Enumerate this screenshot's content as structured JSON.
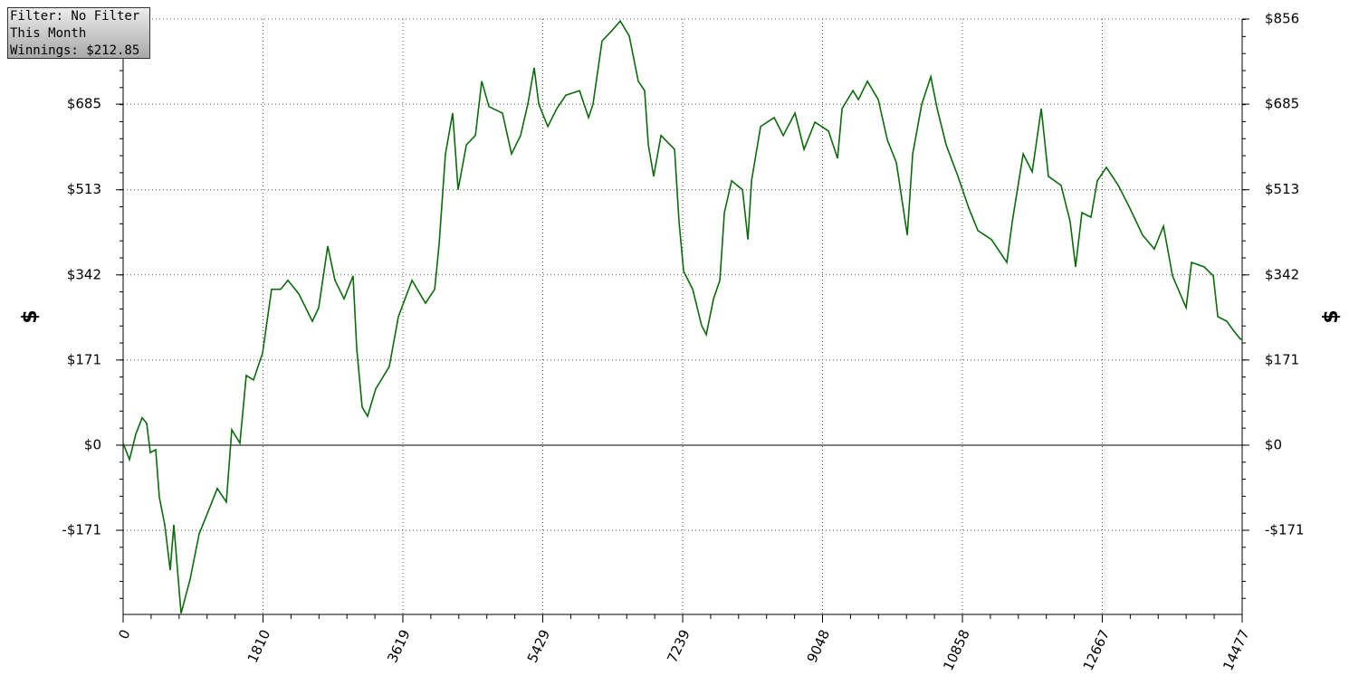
{
  "chart_data": {
    "type": "line",
    "annotations": [
      "Filter: No Filter",
      "This Month",
      "Winnings: $212.85"
    ],
    "ylabel": "$",
    "y2label": "$",
    "color": "#0b6b0b",
    "xlim": [
      0,
      14477
    ],
    "xticks": [
      0,
      1810,
      3619,
      5429,
      7239,
      9048,
      10858,
      12667,
      14477
    ],
    "ylim": [
      -340,
      856
    ],
    "yticks": [
      {
        "value": -171,
        "label": "-$171"
      },
      {
        "value": 0,
        "label": "$0"
      },
      {
        "value": 171,
        "label": "$171"
      },
      {
        "value": 342,
        "label": "$342"
      },
      {
        "value": 513,
        "label": "$513"
      },
      {
        "value": 685,
        "label": "$685"
      },
      {
        "value": 856,
        "label": "$856"
      }
    ],
    "y2lim": [
      -340,
      856
    ],
    "y2ticks": [
      {
        "value": -171,
        "label": "-$171"
      },
      {
        "value": 0,
        "label": "$0"
      },
      {
        "value": 171,
        "label": "$171"
      },
      {
        "value": 342,
        "label": "$342"
      },
      {
        "value": 513,
        "label": "$513"
      },
      {
        "value": 685,
        "label": "$685"
      },
      {
        "value": 856,
        "label": "$856"
      }
    ],
    "grid": true,
    "x": [
      0,
      82,
      164,
      246,
      305,
      351,
      422,
      468,
      539,
      609,
      656,
      750,
      867,
      984,
      1101,
      1218,
      1335,
      1406,
      1511,
      1593,
      1687,
      1804,
      1921,
      2038,
      2132,
      2272,
      2448,
      2530,
      2647,
      2741,
      2858,
      2975,
      3022,
      3092,
      3163,
      3268,
      3444,
      3561,
      3737,
      3912,
      4030,
      4088,
      4170,
      4264,
      4334,
      4440,
      4557,
      4639,
      4733,
      4908,
      5025,
      5142,
      5236,
      5318,
      5377,
      5494,
      5611,
      5728,
      5904,
      6021,
      6079,
      6196,
      6313,
      6431,
      6548,
      6665,
      6747,
      6794,
      6864,
      6958,
      7134,
      7192,
      7251,
      7368,
      7485,
      7544,
      7638,
      7720,
      7778,
      7872,
      8013,
      8083,
      8130,
      8247,
      8423,
      8540,
      8692,
      8809,
      8950,
      9126,
      9243,
      9301,
      9442,
      9512,
      9629,
      9770,
      9887,
      10004,
      10144,
      10215,
      10332,
      10449,
      10531,
      10648,
      10800,
      10941,
      11058,
      11234,
      11433,
      11503,
      11644,
      11761,
      11878,
      11971,
      12135,
      12252,
      12322,
      12404,
      12521,
      12603,
      12720,
      12873,
      13025,
      13189,
      13341,
      13459,
      13576,
      13752,
      13822,
      13986,
      14103,
      14162,
      14279,
      14361,
      14455,
      14477
    ],
    "values": [
      4,
      -29,
      22,
      55,
      44,
      -15,
      -9,
      -105,
      -160,
      -251,
      -160,
      -338,
      -269,
      -178,
      -133,
      -87,
      -114,
      31,
      4,
      140,
      131,
      185,
      313,
      313,
      331,
      304,
      249,
      276,
      400,
      331,
      294,
      340,
      194,
      76,
      58,
      113,
      158,
      258,
      331,
      285,
      313,
      403,
      585,
      667,
      513,
      603,
      622,
      731,
      680,
      667,
      585,
      622,
      685,
      758,
      685,
      640,
      676,
      703,
      712,
      658,
      685,
      812,
      831,
      852,
      822,
      731,
      712,
      603,
      540,
      622,
      594,
      449,
      349,
      313,
      240,
      222,
      294,
      331,
      467,
      531,
      513,
      413,
      531,
      640,
      658,
      622,
      667,
      594,
      649,
      631,
      576,
      676,
      712,
      694,
      731,
      694,
      613,
      567,
      422,
      585,
      685,
      740,
      676,
      603,
      540,
      476,
      431,
      413,
      367,
      449,
      585,
      549,
      676,
      540,
      522,
      449,
      358,
      467,
      458,
      531,
      558,
      522,
      476,
      422,
      394,
      440,
      340,
      276,
      367,
      358,
      340,
      258,
      249,
      231,
      213,
      213
    ]
  }
}
